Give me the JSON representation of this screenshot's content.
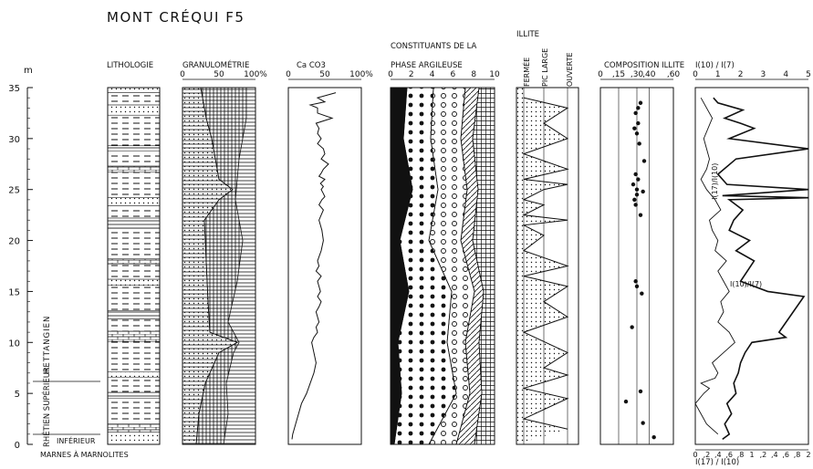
{
  "title": "MONT CRÉQUI F5",
  "depth_axis": {
    "unit": "m",
    "ticks": [
      "0",
      "5",
      "10",
      "15",
      "20",
      "25",
      "30",
      "35"
    ],
    "min": 0,
    "max": 35
  },
  "stages": [
    "HETTANGIEN",
    "RHÉTIEN SUPÉRIEUR",
    "INFÉRIEUR",
    "MARNES À MARNOLITES"
  ],
  "columns": {
    "lithologie": {
      "title": "LITHOLOGIE"
    },
    "granulometrie": {
      "title": "GRANULOMÉTRIE",
      "ticks": [
        "0",
        "50",
        "100%"
      ]
    },
    "caco3": {
      "title": "Ca CO3",
      "ticks": [
        "0",
        "50",
        "100%"
      ]
    },
    "argile": {
      "title_line1": "CONSTITUANTS DE LA",
      "title_line2": "PHASE ARGILEUSE",
      "ticks": [
        "0",
        "2",
        "4",
        "6",
        "8",
        "10"
      ]
    },
    "illite": {
      "title": "ILLITE",
      "labels": [
        "FERMÉE",
        "PIC LARGE",
        "OUVERTE"
      ]
    },
    "composition": {
      "title": "COMPOSITION ILLITE",
      "ticks": [
        "0",
        ",15",
        ",30",
        ",40",
        ",60"
      ]
    },
    "ratio": {
      "title": "I(10) / I(7)",
      "top_ticks": [
        "0",
        "1",
        "2",
        "3",
        "4",
        "5"
      ],
      "bottom_ticks": [
        "0",
        ",2",
        ",4",
        ",6",
        ",8",
        "1",
        ",2",
        ",4",
        ",6",
        ",8",
        "2"
      ],
      "bottom_label": "I(17) / I(10)",
      "label_a": "I(10)/I(7)",
      "label_b": "I(17)/I(10)"
    }
  },
  "chart_data": [
    {
      "type": "line",
      "title": "Ca CO3",
      "xlabel": "Ca CO3 (%)",
      "ylabel": "m",
      "xlim": [
        0,
        100
      ],
      "ylim": [
        0,
        35
      ],
      "series": [
        {
          "x": [
            5,
            6,
            8,
            10,
            14,
            18,
            25,
            30,
            35,
            38,
            35,
            32,
            35,
            40,
            38,
            42,
            40,
            38,
            42,
            45,
            40,
            44,
            42,
            40,
            45,
            38,
            42,
            40,
            45,
            48,
            46,
            42,
            48,
            42,
            46,
            50,
            48,
            45,
            48,
            44,
            50,
            42,
            45,
            48,
            55,
            45,
            50,
            48,
            40,
            45,
            40,
            42,
            38,
            60,
            40,
            40,
            30,
            50,
            40,
            65
          ],
          "y": [
            0.5,
            1,
            1.5,
            2,
            3,
            4,
            5,
            6,
            7,
            8,
            9,
            10,
            10.5,
            11,
            11.5,
            12,
            12.5,
            13,
            13.5,
            14,
            14.5,
            15,
            15.5,
            16,
            16.5,
            17,
            17.5,
            18,
            19,
            20,
            21,
            22,
            23,
            23.5,
            24,
            24.3,
            24.6,
            25,
            25.3,
            25.6,
            26,
            26.3,
            26.6,
            27,
            27.5,
            28,
            28.5,
            29,
            29.5,
            30,
            30.5,
            31,
            31.5,
            32,
            32.5,
            33,
            33.3,
            33.6,
            34,
            34.5
          ]
        }
      ]
    },
    {
      "type": "scatter",
      "title": "COMPOSITION ILLITE",
      "xlabel": "",
      "ylabel": "m",
      "xlim": [
        0,
        0.6
      ],
      "ylim": [
        0,
        35
      ],
      "series": [
        {
          "x": [
            0.44,
            0.35,
            0.21,
            0.33,
            0.26,
            0.34,
            0.3,
            0.29,
            0.33,
            0.29,
            0.28,
            0.3,
            0.35,
            0.3,
            0.27,
            0.31,
            0.29,
            0.36,
            0.32,
            0.3,
            0.28,
            0.31,
            0.29,
            0.31,
            0.33
          ],
          "y": [
            0.7,
            2.1,
            4.2,
            5.2,
            11.5,
            14.8,
            15.5,
            16,
            22.5,
            23.5,
            24,
            24.5,
            24.8,
            25,
            25.5,
            26,
            26.5,
            27.8,
            29.5,
            30.5,
            31,
            31.5,
            32.5,
            33,
            33.5
          ]
        }
      ]
    },
    {
      "type": "line",
      "title": "I(10) / I(7)",
      "xlabel": "I(10) / I(7)",
      "ylabel": "m",
      "xlim": [
        0,
        5
      ],
      "ylim": [
        0,
        35
      ],
      "series": [
        {
          "name": "I(10)/I(7)",
          "x": [
            1.2,
            1.5,
            1.3,
            1.6,
            1.4,
            1.8,
            1.7,
            1.9,
            2.0,
            2.2,
            2.5,
            4,
            3.7,
            4.8,
            3.2,
            2,
            2.6,
            1.8,
            2.4,
            1.5,
            1.7,
            2.1,
            1.5,
            5,
            1.2,
            5,
            1.4,
            1.0,
            1.8,
            5,
            1.5,
            2.6,
            2.0,
            1.3,
            2.1,
            1.0,
            0.8
          ],
          "y": [
            0.5,
            1,
            2,
            3,
            4,
            5,
            6,
            7,
            8,
            9,
            10,
            10.5,
            11,
            14.5,
            15,
            16,
            18,
            19,
            20,
            21,
            22,
            23,
            24,
            24.2,
            24.4,
            25,
            25.5,
            26.5,
            28,
            29,
            30,
            31,
            31.5,
            32,
            32.8,
            33.5,
            34
          ]
        },
        {
          "name": "I(17)/I(10)",
          "x": [
            0.4,
            0.2,
            0.1,
            0.0,
            0.15,
            0.25,
            0.1,
            0.35,
            0.4,
            0.3,
            0.5,
            0.7,
            0.6,
            0.4,
            0.5,
            0.45,
            0.6,
            0.5,
            0.4,
            0.55,
            0.35,
            0.4,
            0.3,
            0.25,
            0.45,
            0.35,
            0.2,
            0.1,
            0.2,
            0.25,
            0.15,
            0.3,
            0.1
          ],
          "y": [
            1,
            2,
            3,
            4,
            5,
            5.5,
            6,
            6.5,
            7,
            8,
            9,
            10,
            11,
            12,
            13,
            14,
            15,
            16,
            17,
            18,
            19,
            20,
            21,
            22,
            23,
            24,
            25,
            26,
            27,
            28,
            30,
            32,
            34
          ]
        }
      ]
    },
    {
      "type": "line",
      "title": "ILLITE",
      "xlabel": "",
      "ylabel": "m",
      "categories": [
        "FERMÉE",
        "PIC LARGE",
        "OUVERTE"
      ],
      "ylim": [
        0,
        35
      ],
      "series": [
        {
          "x": [
            3,
            1,
            3,
            1,
            3,
            2,
            3,
            1,
            3,
            2,
            3,
            1,
            3,
            1,
            2,
            1,
            3,
            1,
            2,
            1,
            2,
            3,
            1,
            3,
            1,
            3,
            2,
            3,
            1
          ],
          "y": [
            1.5,
            2.5,
            4.5,
            5.5,
            6.8,
            7.5,
            9,
            11,
            12.5,
            14,
            15.5,
            16.5,
            17.5,
            19,
            20.5,
            21.5,
            22,
            22.5,
            23.5,
            24,
            25,
            25.5,
            26,
            27,
            28.5,
            30,
            31.5,
            33,
            34
          ]
        }
      ]
    }
  ]
}
